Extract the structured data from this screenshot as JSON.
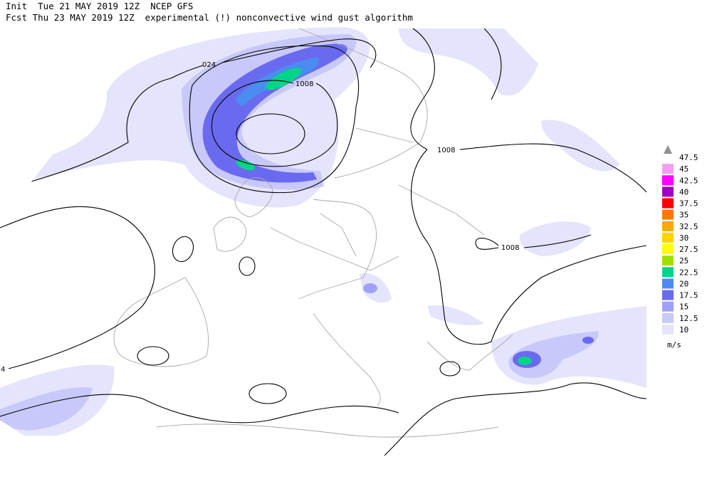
{
  "header": {
    "init": "Init  Tue 21 MAY 2019 12Z  NCEP GFS",
    "forecast": "Fcst Thu 23 MAY 2019 12Z  experimental (!) nonconvective wind gust algorithm"
  },
  "contour_labels": [
    "024",
    "1008",
    "1008",
    "1008",
    "4"
  ],
  "legend": {
    "labels": [
      47.5,
      45,
      42.5,
      40,
      37.5,
      35,
      32.5,
      30,
      27.5,
      25,
      22.5,
      20,
      17.5,
      15,
      12.5,
      10
    ],
    "colors": [
      "#f0a0f0",
      "#ff00ff",
      "#a000c0",
      "#ff0000",
      "#ff7800",
      "#ffa800",
      "#ffd400",
      "#ffff00",
      "#a0e000",
      "#00d488",
      "#4b8cf0",
      "#6a6af0",
      "#a0a0f8",
      "#c8c8fa",
      "#e4e4fc"
    ],
    "unit": "m/s"
  }
}
